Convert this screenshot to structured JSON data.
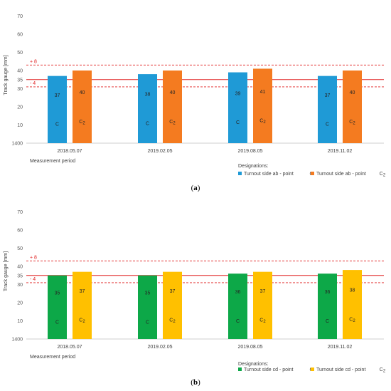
{
  "chart_data": [
    {
      "type": "bar",
      "panel_label": "(a)",
      "ylabel": "Track gauge [mm]",
      "yticks": [
        "1400",
        "10",
        "20",
        "30",
        "35",
        "40",
        "50",
        "60",
        "70"
      ],
      "y_axis_note": "gauge deviation from 1435 mm nominal; baseline tick shown as 1400",
      "reference_lines": [
        {
          "label": "+ 8",
          "value": 43,
          "style": "dashed",
          "color": "#e02020"
        },
        {
          "label": "",
          "value": 35,
          "style": "solid",
          "color": "#e02020"
        },
        {
          "label": "- 4",
          "value": 31,
          "style": "dashed",
          "color": "#e02020"
        }
      ],
      "categories": [
        "2018.05.07",
        "2019.02.05",
        "2019.08.05",
        "2019.11.02"
      ],
      "xlabel": "Measurement period",
      "legend_title": "Designations:",
      "series": [
        {
          "name": "Turnout side ab - point",
          "point_symbol": "C",
          "color": "#1f9ad6",
          "values": [
            37,
            38,
            39,
            37
          ]
        },
        {
          "name": "Turnout side ab - point",
          "point_symbol": "C₂",
          "color": "#f47b20",
          "values": [
            40,
            40,
            41,
            40
          ]
        }
      ]
    },
    {
      "type": "bar",
      "panel_label": "(b)",
      "ylabel": "Track gauge [mm]",
      "yticks": [
        "1400",
        "10",
        "20",
        "30",
        "35",
        "40",
        "50",
        "60",
        "70"
      ],
      "y_axis_note": "gauge deviation from 1435 mm nominal; baseline tick shown as 1400",
      "reference_lines": [
        {
          "label": "+ 8",
          "value": 43,
          "style": "dashed",
          "color": "#e02020"
        },
        {
          "label": "",
          "value": 35,
          "style": "solid",
          "color": "#e02020"
        },
        {
          "label": "- 4",
          "value": 31,
          "style": "dashed",
          "color": "#e02020"
        }
      ],
      "categories": [
        "2018.05.07",
        "2019.02.05",
        "2019.08.05",
        "2019.11.02"
      ],
      "xlabel": "Measurement period",
      "legend_title": "Designations:",
      "series": [
        {
          "name": "Turnout side cd - point",
          "point_symbol": "C",
          "color": "#0da848",
          "values": [
            35,
            35,
            36,
            36
          ]
        },
        {
          "name": "Turnout side cd - point",
          "point_symbol": "C₂",
          "color": "#ffc000",
          "values": [
            37,
            37,
            37,
            38
          ]
        }
      ]
    }
  ]
}
